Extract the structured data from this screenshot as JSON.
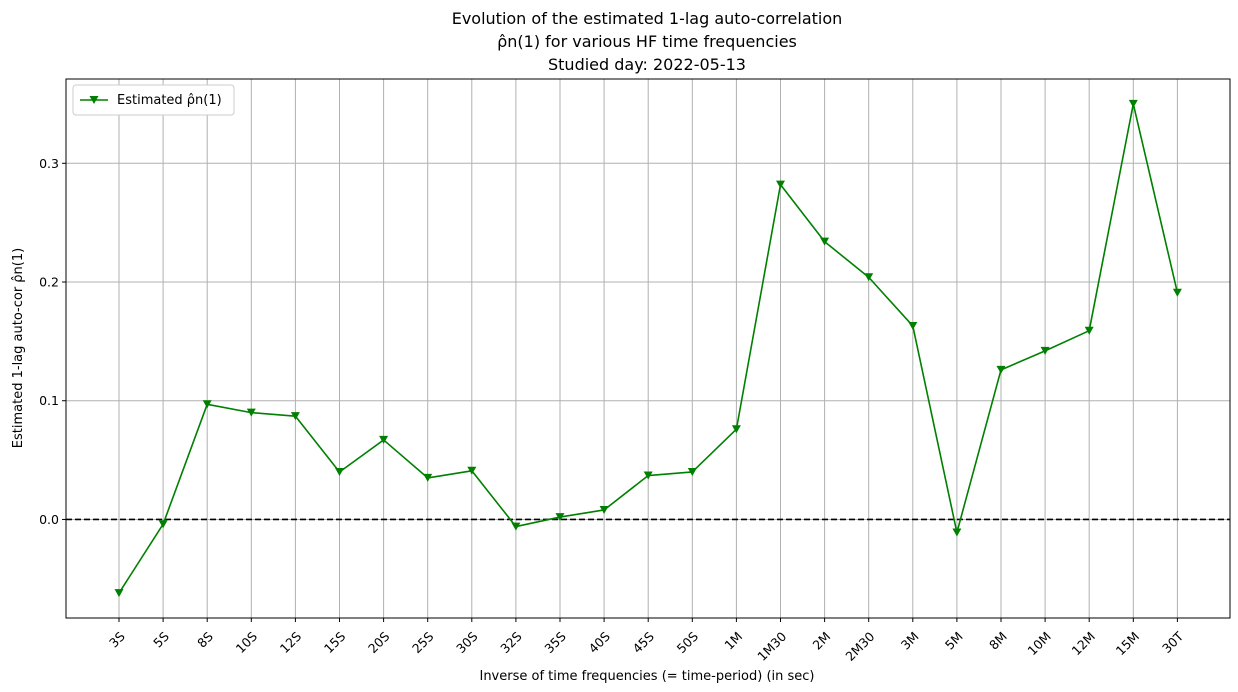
{
  "chart_data": {
    "type": "line",
    "title_lines": [
      "Evolution of the estimated 1-lag auto-correlation",
      "ρ̂n(1) for various HF time frequencies",
      "Studied day: 2022-05-13"
    ],
    "xlabel": "Inverse of time frequencies (= time-period) (in sec)",
    "ylabel": "Estimated 1-lag auto-cor ρ̂n(1)",
    "categories": [
      "3S",
      "5S",
      "8S",
      "10S",
      "12S",
      "15S",
      "20S",
      "25S",
      "30S",
      "32S",
      "35S",
      "40S",
      "45S",
      "50S",
      "1M",
      "1M30",
      "2M",
      "2M30",
      "3M",
      "5M",
      "8M",
      "10M",
      "12M",
      "15M",
      "30T"
    ],
    "series": [
      {
        "name": "Estimated ρ̂n(1)",
        "color": "#008000",
        "marker": "triangle-down",
        "values": [
          -0.062,
          -0.004,
          0.097,
          0.09,
          0.087,
          0.04,
          0.067,
          0.035,
          0.041,
          -0.006,
          0.002,
          0.008,
          0.037,
          0.04,
          0.076,
          0.282,
          0.234,
          0.204,
          0.163,
          -0.011,
          0.126,
          0.142,
          0.159,
          0.35,
          0.191
        ]
      }
    ],
    "reference_line": {
      "y": 0.0,
      "style": "dashed",
      "color": "#000000"
    },
    "ylim": [
      -0.083,
      0.371
    ],
    "yticks": [
      0.0,
      0.1,
      0.2,
      0.3
    ],
    "ytick_labels": [
      "0.0",
      "0.1",
      "0.2",
      "0.3"
    ],
    "grid": true,
    "legend_position": "top-left"
  }
}
